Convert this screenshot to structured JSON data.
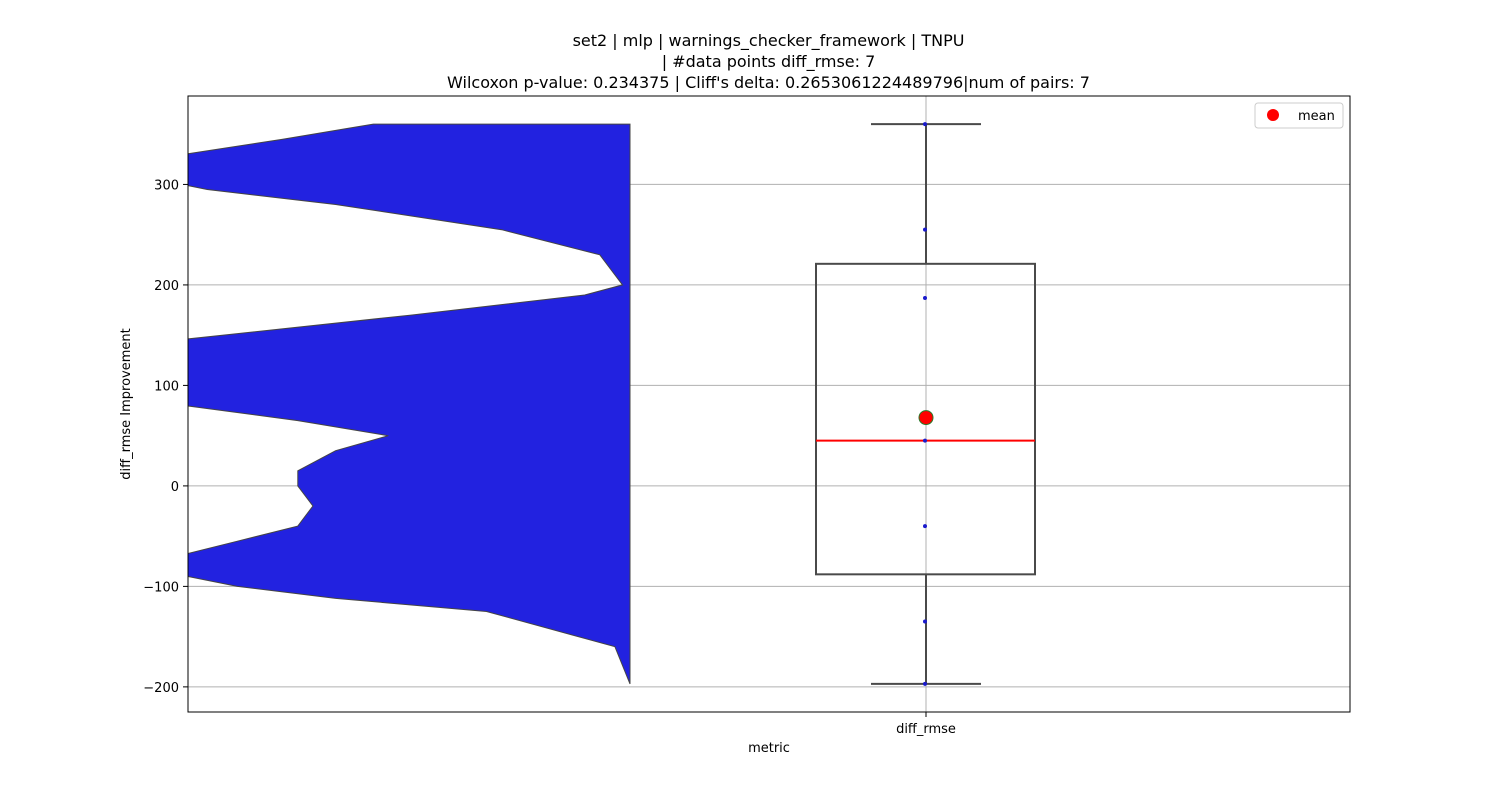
{
  "chart_data": {
    "type": "violin+box",
    "title_lines": [
      "set2 | mlp | warnings_checker_framework | TNPU",
      "| #data points diff_rmse: 7",
      "Wilcoxon p-value: 0.234375 | Cliff's delta: 0.2653061224489796|num of pairs: 7"
    ],
    "xlabel": "metric",
    "ylabel": "diff_rmse Improvement",
    "categories": [
      "diff_rmse"
    ],
    "ylim": [
      -225,
      388
    ],
    "yticks": [
      -200,
      -100,
      0,
      100,
      200,
      300
    ],
    "ytick_labels": [
      "−200",
      "−100",
      "0",
      "100",
      "200",
      "300"
    ],
    "grid": true,
    "legend": {
      "placement": "top-right",
      "entries": [
        {
          "label": "mean",
          "color": "#ff0000"
        }
      ]
    },
    "points": [
      360,
      255,
      187,
      45,
      -40,
      -135,
      -197
    ],
    "box": {
      "q1": -88,
      "median": 45,
      "q3": 221,
      "whisker_low": -197,
      "whisker_high": 360,
      "mean": 68
    },
    "violin_density": [
      [
        360,
        0.0
      ],
      [
        345,
        0.12
      ],
      [
        330,
        0.25
      ],
      [
        310,
        0.32
      ],
      [
        295,
        0.22
      ],
      [
        280,
        0.05
      ],
      [
        255,
        -0.17
      ],
      [
        230,
        -0.3
      ],
      [
        200,
        -0.33
      ],
      [
        190,
        -0.28
      ],
      [
        170,
        -0.05
      ],
      [
        150,
        0.2
      ],
      [
        130,
        0.45
      ],
      [
        112,
        0.56
      ],
      [
        95,
        0.45
      ],
      [
        80,
        0.25
      ],
      [
        65,
        0.1
      ],
      [
        50,
        -0.02
      ],
      [
        35,
        0.05
      ],
      [
        15,
        0.1
      ],
      [
        0,
        0.1
      ],
      [
        -20,
        0.08
      ],
      [
        -40,
        0.1
      ],
      [
        -55,
        0.18
      ],
      [
        -70,
        0.26
      ],
      [
        -85,
        0.28
      ],
      [
        -100,
        0.18
      ],
      [
        -112,
        0.05
      ],
      [
        -125,
        -0.15
      ],
      [
        -160,
        -0.32
      ],
      [
        -197,
        -0.34
      ]
    ],
    "colors": {
      "violin_fill": "#2222e0",
      "violin_edge": "#444444",
      "box_edge": "#4a4a4a",
      "median": "#ff0000",
      "mean_fill": "#ff0000",
      "mean_edge": "#2a7a2a",
      "point": "#1a1acc",
      "grid": "#b0b0b0"
    }
  }
}
